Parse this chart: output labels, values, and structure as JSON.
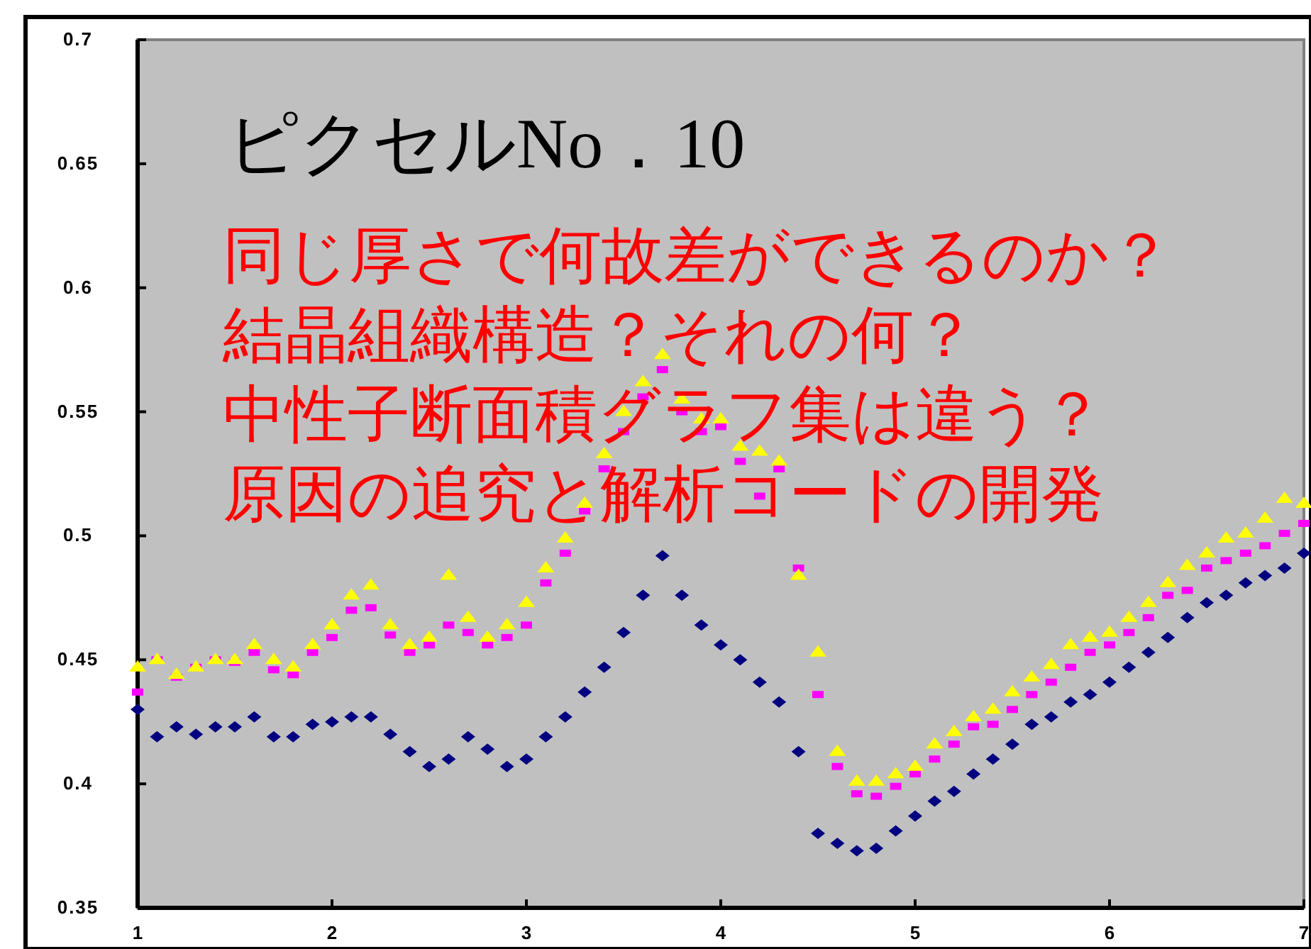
{
  "chart_data": {
    "type": "scatter",
    "title": "ピクセルNo．10",
    "annotations": [
      "同じ厚さで何故差ができるのか？",
      "結晶組織構造？それの何？",
      "中性子断面積グラフ集は違う？",
      "原因の追究と解析コードの開発"
    ],
    "x": [
      1.0,
      1.1,
      1.2,
      1.3,
      1.4,
      1.5,
      1.6,
      1.7,
      1.8,
      1.9,
      2.0,
      2.1,
      2.2,
      2.3,
      2.4,
      2.5,
      2.6,
      2.7,
      2.8,
      2.9,
      3.0,
      3.1,
      3.2,
      3.3,
      3.4,
      3.5,
      3.6,
      3.7,
      3.8,
      3.9,
      4.0,
      4.1,
      4.2,
      4.3,
      4.4,
      4.5,
      4.6,
      4.7,
      4.8,
      4.9,
      5.0,
      5.1,
      5.2,
      5.3,
      5.4,
      5.5,
      5.6,
      5.7,
      5.8,
      5.9,
      6.0,
      6.1,
      6.2,
      6.3,
      6.4,
      6.5,
      6.6,
      6.7,
      6.8,
      6.9,
      7.0
    ],
    "series": [
      {
        "color": "#000080",
        "marker": "diamond",
        "values": [
          0.43,
          0.419,
          0.423,
          0.42,
          0.423,
          0.423,
          0.427,
          0.419,
          0.419,
          0.424,
          0.425,
          0.427,
          0.427,
          0.42,
          0.413,
          0.407,
          0.41,
          0.419,
          0.414,
          0.407,
          0.41,
          0.419,
          0.427,
          0.437,
          0.447,
          0.461,
          0.476,
          0.492,
          0.476,
          0.464,
          0.456,
          0.45,
          0.441,
          0.433,
          0.413,
          0.38,
          0.376,
          0.373,
          0.374,
          0.381,
          0.387,
          0.393,
          0.397,
          0.404,
          0.41,
          0.416,
          0.424,
          0.427,
          0.433,
          0.436,
          0.441,
          0.447,
          0.453,
          0.459,
          0.467,
          0.473,
          0.476,
          0.481,
          0.484,
          0.487,
          0.493
        ]
      },
      {
        "color": "#ff00ff",
        "marker": "square",
        "values": [
          0.437,
          0.45,
          0.443,
          0.447,
          0.45,
          0.449,
          0.453,
          0.446,
          0.444,
          0.453,
          0.459,
          0.47,
          0.471,
          0.46,
          0.453,
          0.456,
          0.464,
          0.461,
          0.456,
          0.459,
          0.464,
          0.481,
          0.493,
          0.51,
          0.527,
          0.542,
          0.556,
          0.567,
          0.55,
          0.542,
          0.544,
          0.53,
          0.516,
          0.527,
          0.487,
          0.436,
          0.407,
          0.396,
          0.395,
          0.399,
          0.404,
          0.41,
          0.416,
          0.423,
          0.424,
          0.43,
          0.436,
          0.441,
          0.447,
          0.453,
          0.456,
          0.461,
          0.467,
          0.476,
          0.478,
          0.487,
          0.49,
          0.493,
          0.496,
          0.501,
          0.505
        ]
      },
      {
        "color": "#ffff00",
        "marker": "triangle",
        "values": [
          0.447,
          0.45,
          0.444,
          0.447,
          0.45,
          0.45,
          0.456,
          0.45,
          0.447,
          0.456,
          0.464,
          0.476,
          0.48,
          0.464,
          0.456,
          0.459,
          0.484,
          0.467,
          0.459,
          0.464,
          0.473,
          0.487,
          0.499,
          0.513,
          0.533,
          0.55,
          0.562,
          0.573,
          0.555,
          0.547,
          0.547,
          0.536,
          0.534,
          0.53,
          0.484,
          0.453,
          0.413,
          0.401,
          0.401,
          0.404,
          0.407,
          0.416,
          0.421,
          0.427,
          0.43,
          0.437,
          0.443,
          0.448,
          0.456,
          0.459,
          0.461,
          0.467,
          0.473,
          0.481,
          0.488,
          0.493,
          0.499,
          0.501,
          0.507,
          0.515,
          0.513
        ]
      }
    ],
    "xlim": [
      1,
      7
    ],
    "ylim": [
      0.35,
      0.7
    ],
    "xticks": [
      1,
      2,
      3,
      4,
      5,
      6,
      7
    ],
    "yticks": [
      0.35,
      0.4,
      0.45,
      0.5,
      0.55,
      0.6,
      0.65,
      0.7
    ],
    "grid": false
  }
}
